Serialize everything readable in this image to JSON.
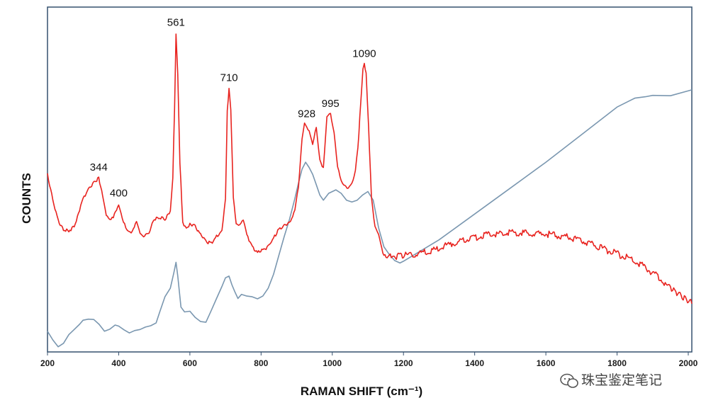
{
  "chart_data": {
    "type": "line",
    "xlabel": "RAMAN SHIFT (cm⁻¹)",
    "ylabel": "COUNTS",
    "xlim": [
      200,
      2010
    ],
    "ylim": [
      0,
      100
    ],
    "x_ticks": [
      200,
      400,
      600,
      800,
      1000,
      1200,
      1400,
      1600,
      1800,
      2000
    ],
    "grid": false,
    "series": [
      {
        "color": "#e8231f",
        "x": [
          200,
          215,
          230,
          245,
          260,
          275,
          290,
          300,
          315,
          330,
          344,
          355,
          365,
          375,
          385,
          400,
          410,
          420,
          435,
          450,
          460,
          470,
          485,
          500,
          515,
          530,
          545,
          552,
          557,
          561,
          566,
          572,
          580,
          590,
          600,
          615,
          630,
          645,
          660,
          675,
          690,
          700,
          705,
          710,
          715,
          722,
          730,
          740,
          750,
          760,
          775,
          790,
          805,
          820,
          835,
          850,
          865,
          880,
          895,
          905,
          915,
          922,
          928,
          935,
          945,
          955,
          965,
          975,
          985,
          995,
          1005,
          1015,
          1025,
          1035,
          1045,
          1055,
          1065,
          1072,
          1080,
          1086,
          1090,
          1095,
          1102,
          1110,
          1120,
          1130,
          1145,
          1160,
          1180,
          1200,
          1250,
          1300,
          1350,
          1400,
          1450,
          1500,
          1550,
          1600,
          1650,
          1700,
          1750,
          1800,
          1850,
          1900,
          1950,
          2010
        ],
        "y": [
          51.5,
          44,
          38,
          35.5,
          35,
          36.5,
          41,
          44.5,
          47,
          49,
          50.5,
          45.5,
          40,
          38,
          39,
          43,
          39,
          35.8,
          34.5,
          37.5,
          34.7,
          33.5,
          34.5,
          38.5,
          39,
          38.5,
          41,
          50,
          71,
          92.5,
          80,
          55,
          37.5,
          36,
          37,
          36.5,
          34,
          32,
          31.5,
          33.5,
          35,
          44,
          70,
          76.5,
          70,
          45,
          37,
          37,
          38.5,
          34,
          30.5,
          28.8,
          29.5,
          30.5,
          33,
          35.5,
          36.5,
          37.5,
          41,
          48,
          62,
          66,
          65.5,
          64,
          60.5,
          65,
          55.5,
          53.5,
          68,
          69,
          64,
          53.5,
          49.5,
          48.5,
          47.5,
          48.5,
          53,
          59,
          72.5,
          82,
          83.5,
          81,
          65,
          45,
          36,
          34,
          27.8,
          28,
          27.8,
          28.1,
          28.6,
          30,
          31.8,
          33.2,
          34.2,
          34.6,
          34.4,
          34.2,
          33.6,
          32.2,
          30.4,
          28.4,
          26.5,
          23,
          18.5,
          14
        ]
      },
      {
        "color": "#7a97b0",
        "x": [
          200,
          215,
          230,
          245,
          260,
          275,
          290,
          300,
          315,
          330,
          345,
          360,
          375,
          390,
          400,
          415,
          430,
          445,
          460,
          475,
          490,
          505,
          515,
          530,
          545,
          555,
          561,
          566,
          575,
          585,
          600,
          615,
          630,
          645,
          660,
          675,
          690,
          700,
          710,
          718,
          726,
          735,
          745,
          760,
          775,
          790,
          805,
          820,
          835,
          850,
          865,
          880,
          895,
          905,
          915,
          925,
          935,
          945,
          955,
          965,
          975,
          990,
          1010,
          1025,
          1040,
          1055,
          1070,
          1085,
          1100,
          1115,
          1130,
          1145,
          1160,
          1175,
          1190,
          1200,
          1300,
          1400,
          1500,
          1600,
          1700,
          1750,
          1800,
          1850,
          1880,
          1900,
          1950,
          2010
        ],
        "y": [
          6,
          3.5,
          1.5,
          2.5,
          5,
          6.5,
          8,
          9.2,
          9.5,
          9.4,
          8,
          6,
          6.6,
          7.8,
          7.5,
          6.4,
          5.5,
          6.2,
          6.5,
          7.2,
          7.6,
          8.4,
          11.5,
          16,
          18.5,
          23,
          26,
          22,
          13,
          11.6,
          11.8,
          10,
          8.8,
          8.6,
          12,
          15.5,
          19,
          21.5,
          22,
          19.5,
          17.5,
          15.5,
          16.7,
          16.2,
          16,
          15.4,
          16.2,
          18.5,
          22.5,
          28,
          33.5,
          38.5,
          44.5,
          49,
          53,
          55,
          53.5,
          51.5,
          48.5,
          45.5,
          44,
          46,
          47,
          46,
          44,
          43.5,
          44,
          45.5,
          46.5,
          44,
          36,
          30.5,
          28.3,
          26.5,
          25.8,
          26.3,
          32.5,
          40,
          47.5,
          55,
          63,
          67,
          71,
          73.6,
          74,
          74.4,
          74.3,
          76
        ]
      }
    ],
    "peak_labels": [
      {
        "label": "344",
        "x": 344,
        "y": 50.5
      },
      {
        "label": "400",
        "x": 400,
        "y": 43
      },
      {
        "label": "561",
        "x": 561,
        "y": 92.5
      },
      {
        "label": "710",
        "x": 710,
        "y": 76.5
      },
      {
        "label": "928",
        "x": 928,
        "y": 66
      },
      {
        "label": "995",
        "x": 995,
        "y": 69
      },
      {
        "label": "1090",
        "x": 1090,
        "y": 83.5
      }
    ]
  },
  "watermark": {
    "icon": "wechat-icon",
    "text": "珠宝鉴定笔记"
  }
}
